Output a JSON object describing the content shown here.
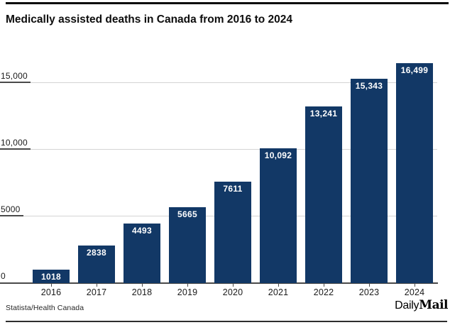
{
  "chart_data": {
    "type": "bar",
    "title": "Medically assisted deaths in Canada from 2016 to 2024",
    "categories": [
      "2016",
      "2017",
      "2018",
      "2019",
      "2020",
      "2021",
      "2022",
      "2023",
      "2024"
    ],
    "values": [
      1018,
      2838,
      4493,
      5665,
      7611,
      10092,
      13241,
      15343,
      16499
    ],
    "value_labels": [
      "1018",
      "2838",
      "4493",
      "5665",
      "7611",
      "10,092",
      "13,241",
      "15,343",
      "16,499"
    ],
    "y_ticks": [
      {
        "value": 0,
        "label": "0"
      },
      {
        "value": 5000,
        "label": "5000"
      },
      {
        "value": 10000,
        "label": "10,000"
      },
      {
        "value": 15000,
        "label": "15,000"
      }
    ],
    "ylim": [
      0,
      16800
    ],
    "xlabel": "",
    "ylabel": "",
    "grid": "horizontal",
    "legend": "none",
    "bar_color": "#123866"
  },
  "footer": {
    "source": "Statista/Health Canada",
    "logo_daily": "Daily",
    "logo_mail": "Mail"
  },
  "colors": {
    "bar": "#123866",
    "grid": "#d4d4d4",
    "axis": "#4a4a4a",
    "title": "#0d0d0d",
    "value_label": "#ffffff",
    "rule": "#0a0a0a"
  }
}
